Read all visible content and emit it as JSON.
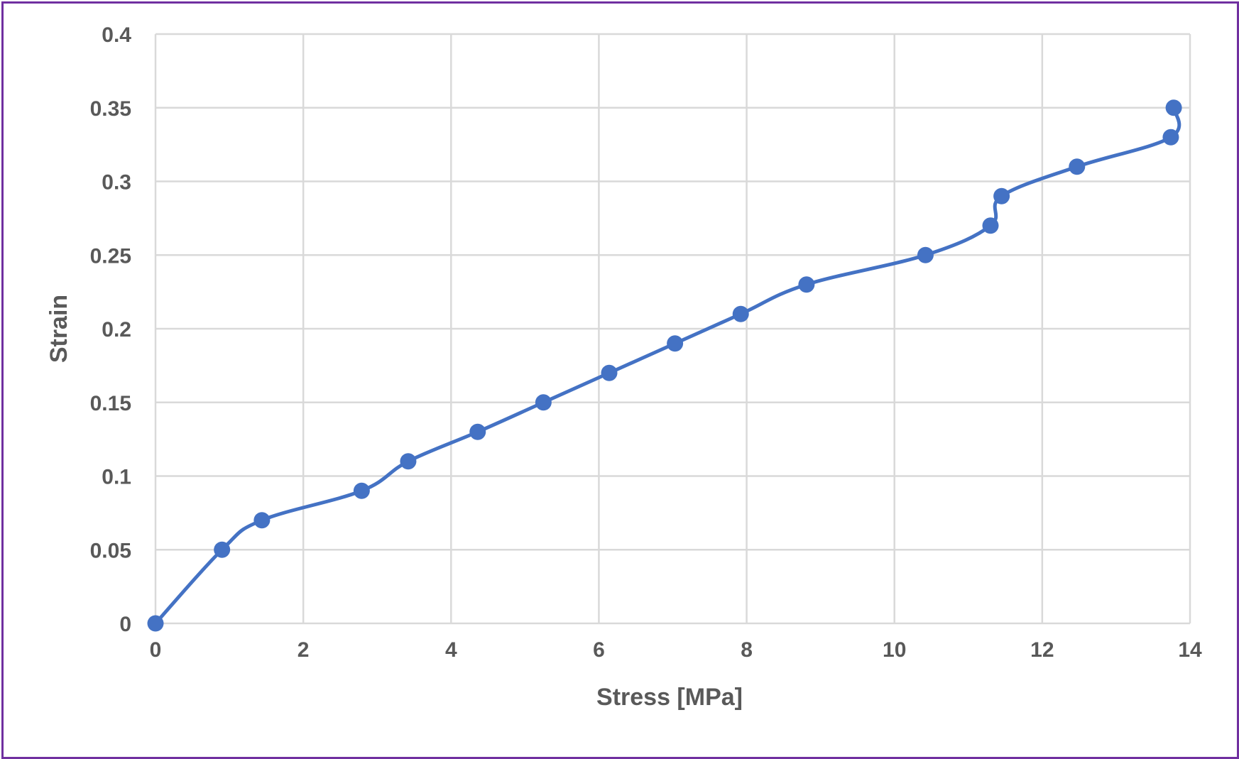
{
  "chart_data": {
    "type": "scatter",
    "xlabel": "Stress [MPa]",
    "ylabel": "Strain",
    "xlim": [
      0,
      14
    ],
    "ylim": [
      0,
      0.4
    ],
    "x_ticks": [
      "0",
      "2",
      "4",
      "6",
      "8",
      "10",
      "12",
      "14"
    ],
    "y_ticks": [
      "0",
      "0.05",
      "0.1",
      "0.15",
      "0.2",
      "0.25",
      "0.3",
      "0.35",
      "0.4"
    ],
    "grid": true,
    "smoothed_line": true,
    "color": "#4472c4",
    "series": [
      {
        "x": [
          0,
          0.9,
          1.44,
          2.79,
          3.42,
          4.36,
          5.25,
          6.14,
          7.03,
          7.92,
          8.81,
          10.42,
          11.3,
          11.45,
          12.47,
          13.74,
          13.78
        ],
        "y": [
          0,
          0.05,
          0.07,
          0.09,
          0.11,
          0.13,
          0.15,
          0.17,
          0.19,
          0.21,
          0.23,
          0.25,
          0.27,
          0.29,
          0.31,
          0.33,
          0.35
        ]
      }
    ]
  }
}
